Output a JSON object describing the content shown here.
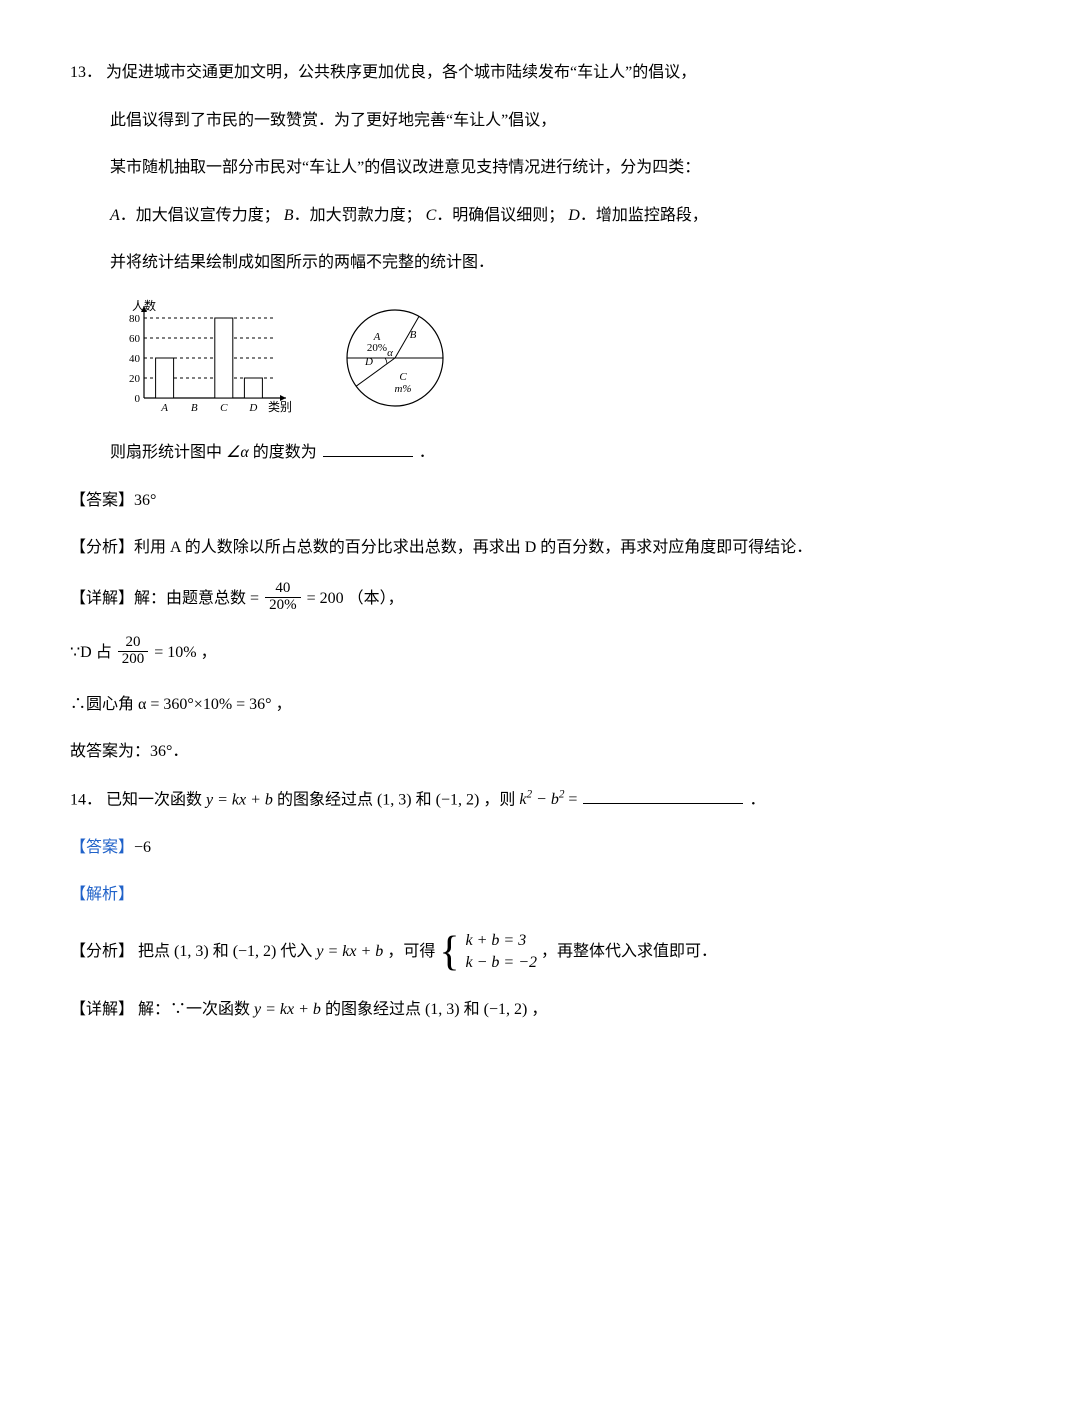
{
  "q13": {
    "number": "13．",
    "line1": "为促进城市交通更加文明，公共秩序更加优良，各个城市陆续发布“车让人”的倡议，",
    "line2": "此倡议得到了市民的一致赞赏．为了更好地完善“车让人”倡议，",
    "line3": "某市随机抽取一部分市民对“车让人”的倡议改进意见支持情况进行统计，分为四类：",
    "line4_a": "A",
    "line4_a_txt": "．加大倡议宣传力度；",
    "line4_b": "B",
    "line4_b_txt": "．加大罚款力度；",
    "line4_c": "C",
    "line4_c_txt": "．明确倡议细则；",
    "line4_d": "D",
    "line4_d_txt": "．增加监控路段，",
    "line5": "并将统计结果绘制成如图所示的两幅不完整的统计图．",
    "bar_chart": {
      "type": "bar",
      "y_ticks": [
        "0",
        "20",
        "40",
        "60",
        "80"
      ],
      "y_lines": [
        20,
        40,
        60,
        80
      ],
      "y_axis_label": "人数",
      "x_axis_label": "类别",
      "categories": [
        "A",
        "B",
        "C",
        "D"
      ],
      "values": [
        40,
        null,
        80,
        20
      ],
      "axis_color": "#000",
      "grid_dash": "3,3",
      "bar_fill": "#ffffff",
      "bar_stroke": "#000"
    },
    "pie_chart": {
      "type": "pie",
      "stroke": "#000",
      "fill": "#ffffff",
      "labels": {
        "A": "A",
        "A_pct": "20%",
        "B": "B",
        "C": "C",
        "C_pct": "m%",
        "D": "D",
        "alpha": "α"
      },
      "alpha_deg_visual": 36
    },
    "q_tail_pre": "则扇形统计图中",
    "q_tail_mid": "∠α",
    "q_tail_post": "的度数为",
    "period": "．",
    "answer_label": "【答案】",
    "answer_val": "36°",
    "analysis_label": "【分析】",
    "analysis_text": "利用 A 的人数除以所占总数的百分比求出总数，再求出 D 的百分数，再求对应角度即可得结论．",
    "detail_label": "【详解】",
    "detail_pre": "解：由题意总数",
    "detail_eq_eq": "=",
    "frac1_num": "40",
    "frac1_den": "20%",
    "detail_eq_200": "= 200 （本），",
    "d_line_pre": "∵D 占",
    "frac2_num": "20",
    "frac2_den": "200",
    "d_line_post": "= 10% ，",
    "alpha_line": "∴圆心角 α = 360°×10% = 36° ，",
    "so_line": "故答案为：36°．"
  },
  "q14": {
    "number": "14．",
    "stem_pre": "已知一次函数",
    "fx": "y = kx + b",
    "stem_mid1": "的图象经过点",
    "p1": "(1, 3)",
    "and": "和",
    "p2": "(−1, 2)",
    "stem_mid2": "，则",
    "expr": "k",
    "expr2": " − b",
    "expr_eq": " = ",
    "period": "．",
    "answer_label": "【答案】",
    "answer_val": "−6",
    "jiexi_label": "【解析】",
    "analysis_label": "【分析】",
    "analysis_pre": "把点",
    "analysis_p1": "(1, 3)",
    "analysis_and": "和",
    "analysis_p2": "(−1, 2)",
    "analysis_mid": "代入",
    "analysis_fx": "y = kx + b",
    "analysis_mid2": "，可得",
    "sys_r1": "k + b = 3",
    "sys_r2": "k − b = −2",
    "analysis_post": "，再整体代入求值即可．",
    "detail_label": "【详解】",
    "detail_pre": "解：∵一次函数",
    "detail_fx": "y = kx + b",
    "detail_mid": "的图象经过点",
    "detail_p1": "(1, 3)",
    "detail_and": "和",
    "detail_p2": "(−1, 2)",
    "detail_post": "，"
  }
}
